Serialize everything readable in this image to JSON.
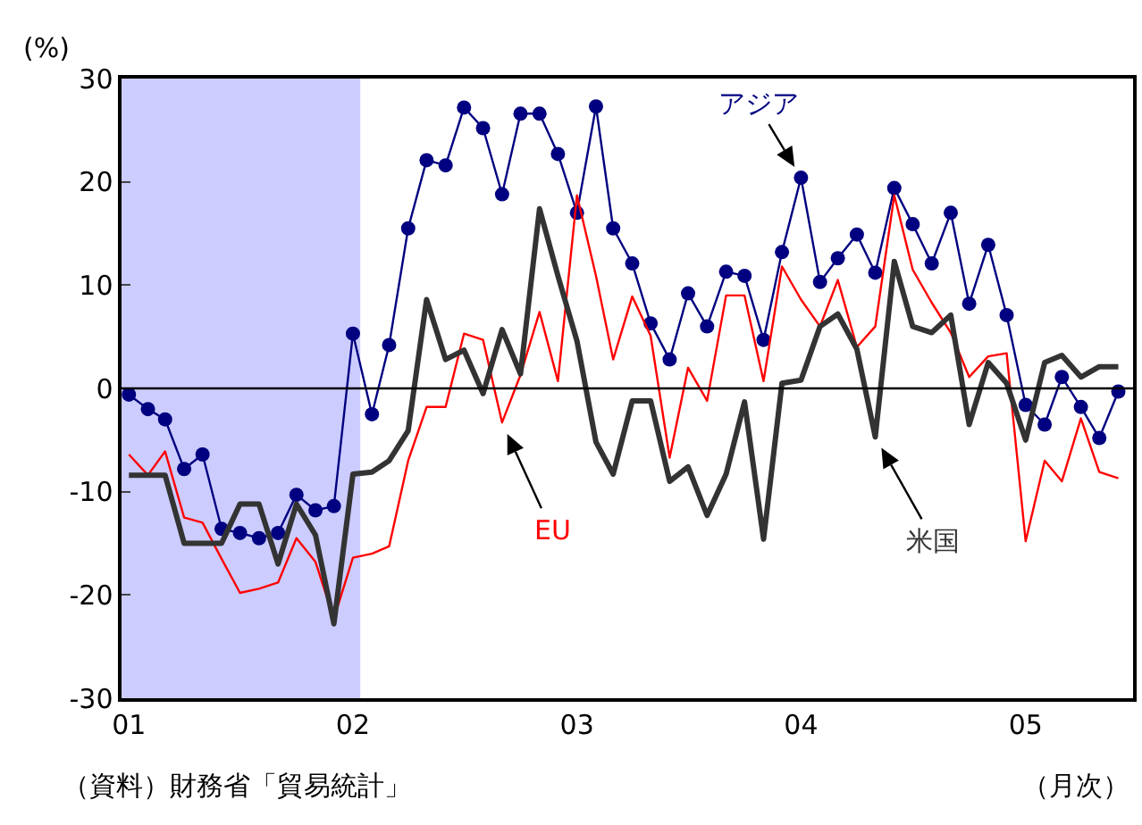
{
  "chart_data": {
    "type": "line",
    "ylabel": "(%)",
    "xlabel": "（月次）",
    "annotations": [
      "（資料）財務省「貿易統計」"
    ],
    "x": [
      "2001-01",
      "2001-02",
      "2001-03",
      "2001-04",
      "2001-05",
      "2001-06",
      "2001-07",
      "2001-08",
      "2001-09",
      "2001-10",
      "2001-11",
      "2001-12",
      "2002-01",
      "2002-02",
      "2002-03",
      "2002-04",
      "2002-05",
      "2002-06",
      "2002-07",
      "2002-08",
      "2002-09",
      "2002-10",
      "2002-11",
      "2002-12",
      "2003-01",
      "2003-02",
      "2003-03",
      "2003-04",
      "2003-05",
      "2003-06",
      "2003-07",
      "2003-08",
      "2003-09",
      "2003-10",
      "2003-11",
      "2003-12",
      "2004-01",
      "2004-02",
      "2004-03",
      "2004-04",
      "2004-05",
      "2004-06",
      "2004-07",
      "2004-08",
      "2004-09",
      "2004-10",
      "2004-11",
      "2004-12",
      "2005-01",
      "2005-02",
      "2005-03",
      "2005-04",
      "2005-05",
      "2005-06"
    ],
    "xlim": [
      "2000-12-20",
      "2005-06-25"
    ],
    "xticks": [
      {
        "value": "2001-01",
        "label": "01"
      },
      {
        "value": "2002-01",
        "label": "02"
      },
      {
        "value": "2003-01",
        "label": "03"
      },
      {
        "value": "2004-01",
        "label": "04"
      },
      {
        "value": "2005-01",
        "label": "05"
      }
    ],
    "ylim": [
      -30,
      30
    ],
    "yticks": [
      -30,
      -20,
      -10,
      0,
      10,
      20,
      30
    ],
    "grid": false,
    "legend": false,
    "bands": [
      {
        "axis": "x",
        "from": "2000-12-20",
        "to": "2002-01-13",
        "color": "#ccccff"
      }
    ],
    "ref_lines": [
      {
        "axis": "y",
        "value": 0,
        "color": "#000000"
      }
    ],
    "series": [
      {
        "name": "アジア",
        "color": "#000080",
        "marker": "circle",
        "values": [
          -0.6,
          -2,
          -3,
          -7.8,
          -6.4,
          -13.6,
          -14,
          -14.5,
          -14,
          -10.3,
          -11.8,
          -11.4,
          5.3,
          -2.5,
          4.2,
          15.5,
          22.1,
          21.6,
          27.2,
          25.2,
          18.8,
          26.6,
          26.6,
          22.7,
          17,
          27.3,
          15.5,
          12.1,
          6.3,
          2.8,
          9.2,
          6,
          11.3,
          10.9,
          4.7,
          13.2,
          20.4,
          10.3,
          12.6,
          14.9,
          11.2,
          19.4,
          15.9,
          12.1,
          17,
          8.2,
          13.9,
          7.1,
          -1.6,
          -3.5,
          1.1,
          -1.8,
          -4.8,
          -0.3
        ]
      },
      {
        "name": "EU",
        "color": "#ff0000",
        "marker": "none",
        "values": [
          -6.4,
          -8.4,
          -6.1,
          -12.5,
          -13,
          -16.5,
          -19.8,
          -19.4,
          -18.8,
          -14.5,
          -16.8,
          -22.3,
          -16.4,
          -16,
          -15.3,
          -7,
          -1.8,
          -1.8,
          5.3,
          4.7,
          -3.3,
          1.3,
          7.4,
          0.7,
          18.7,
          10.9,
          2.8,
          8.9,
          5.1,
          -6.7,
          2,
          -1.2,
          9,
          9,
          0.7,
          11.8,
          8.6,
          6,
          10.5,
          4,
          6,
          18.7,
          11.5,
          8.3,
          5.4,
          1.1,
          3.1,
          3.4,
          -14.8,
          -7,
          -9,
          -2.9,
          -8.1,
          -8.7
        ]
      },
      {
        "name": "米国",
        "color": "#333333",
        "marker": "none",
        "values": [
          -8.4,
          -8.4,
          -8.4,
          -15,
          -15,
          -15,
          -11.2,
          -11.2,
          -17,
          -11.2,
          -14.2,
          -22.8,
          -8.3,
          -8.1,
          -7,
          -4.1,
          8.6,
          2.8,
          3.7,
          -0.5,
          5.7,
          1.4,
          17.4,
          10.9,
          4.6,
          -5.2,
          -8.3,
          -1.2,
          -1.2,
          -9,
          -7.6,
          -12.3,
          -8.3,
          -1.3,
          -14.6,
          0.5,
          0.8,
          6,
          7.2,
          3.8,
          -4.7,
          12.3,
          6,
          5.4,
          7.1,
          -3.5,
          2.5,
          0.5,
          -5,
          2.5,
          3.2,
          1.1,
          2.1,
          2.1
        ]
      }
    ]
  }
}
